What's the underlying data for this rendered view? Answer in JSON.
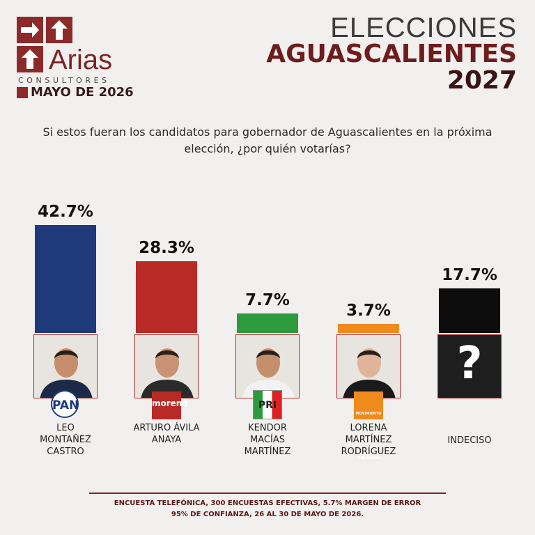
{
  "brand": {
    "name": "Arias",
    "subtitle": "CONSULTORES",
    "date": "MAYO DE 2026"
  },
  "chart_data": {
    "type": "bar",
    "title": [
      "ELECCIONES",
      "AGUASCALIENTES",
      "2027"
    ],
    "subtitle": "Si estos fueran los candidatos para gobernador de Aguascalientes en la próxima elección, ¿por quién votarías?",
    "categories": [
      "LEO\nMONTAÑEZ\nCASTRO",
      "ARTURO ÁVILA\nANAYA",
      "KENDOR\nMACÍAS\nMARTÍNEZ",
      "LORENA\nMARTÍNEZ\nRODRÍGUEZ",
      "INDECISO"
    ],
    "values": [
      42.7,
      28.3,
      7.7,
      3.7,
      17.7
    ],
    "value_labels": [
      "42.7%",
      "28.3%",
      "7.7%",
      "3.7%",
      "17.7%"
    ],
    "colors": [
      "#1f3a7a",
      "#b82a26",
      "#2e9a3e",
      "#f08a1c",
      "#0d0d0d"
    ],
    "parties": [
      "PAN",
      "morena",
      "PRI",
      "MOVIMIENTO CIUDADANO",
      null
    ],
    "undecided_symbol": "?",
    "footnote": [
      "ENCUESTA TELEFÓNICA, 300 ENCUESTAS EFECTIVAS, 5.7%  MARGEN DE ERROR",
      "95% DE CONFIANZA, 26 AL 30 DE MAYO DE 2026."
    ]
  }
}
